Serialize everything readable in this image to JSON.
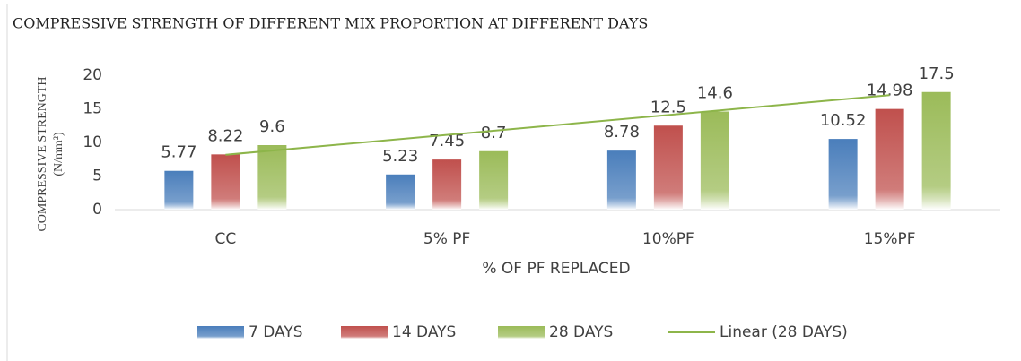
{
  "chart_data": {
    "type": "bar",
    "title": "COMPRESSIVE STRENGTH OF DIFFERENT MIX PROPORTION AT DIFFERENT DAYS",
    "x_label": "% OF PF REPLACED",
    "y_label": [
      "COMPRESSIVE STRENGTH",
      "(N/mm²)"
    ],
    "categories": [
      "CC",
      "5% PF",
      "10%PF",
      "15%PF"
    ],
    "series": [
      {
        "name": "7 DAYS",
        "color": "#4a7ebb",
        "values": [
          5.77,
          5.23,
          8.78,
          10.52
        ]
      },
      {
        "name": "14 DAYS",
        "color": "#c0504d",
        "values": [
          8.22,
          7.45,
          12.5,
          14.98
        ]
      },
      {
        "name": "28 DAYS",
        "color": "#9bbb59",
        "values": [
          9.6,
          8.7,
          14.6,
          17.5
        ]
      }
    ],
    "trendline": {
      "name": "Linear (28 DAYS)",
      "series": 2,
      "color": "#8db54a"
    },
    "ylim": [
      0,
      20
    ],
    "yticks": [
      0,
      5,
      10,
      15,
      20
    ],
    "grid": false,
    "legend": "bottom"
  }
}
